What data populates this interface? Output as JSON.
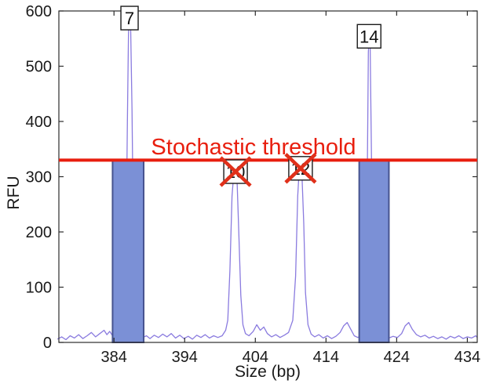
{
  "figure": {
    "background": "#ffffff",
    "axis_color": "#2b2b2b",
    "text_color": "#1a1a1a",
    "trace_color": "#8a7bdf",
    "bin_fill": "#7b90d6",
    "bin_border": "#46538f",
    "threshold_color": "#e81e0e",
    "cross_color": "#e0301a",
    "peak_box_fill": "#ffffff",
    "peak_box_border": "#1a1a1a"
  },
  "chart_data": {
    "type": "line",
    "title": "",
    "xlabel": "Size (bp)",
    "ylabel": "RFU",
    "xlim": [
      376.2,
      435.4
    ],
    "ylim": [
      0,
      600
    ],
    "x_ticks": [
      384,
      394,
      404,
      414,
      424,
      434
    ],
    "y_ticks": [
      0,
      100,
      200,
      300,
      400,
      500,
      600
    ],
    "grid": false,
    "threshold": {
      "value": 330,
      "label": "Stochastic threshold"
    },
    "peaks": [
      {
        "label": "7",
        "size_bp": 386.2,
        "height_rfu": 590,
        "above_threshold": true,
        "crossed_out": false
      },
      {
        "label": "10",
        "size_bp": 401.2,
        "height_rfu": 312,
        "above_threshold": false,
        "crossed_out": true
      },
      {
        "label": "12",
        "size_bp": 410.4,
        "height_rfu": 318,
        "above_threshold": false,
        "crossed_out": true
      },
      {
        "label": "14",
        "size_bp": 420.1,
        "height_rfu": 557,
        "above_threshold": true,
        "crossed_out": false
      }
    ],
    "allele_bins": [
      {
        "from_bp": 383.8,
        "to_bp": 388.2,
        "top_rfu": 330
      },
      {
        "from_bp": 418.7,
        "to_bp": 422.9,
        "top_rfu": 330
      }
    ],
    "trace": [
      [
        376.0,
        6
      ],
      [
        376.6,
        10
      ],
      [
        377.2,
        5
      ],
      [
        377.8,
        12
      ],
      [
        378.4,
        8
      ],
      [
        379.0,
        14
      ],
      [
        379.6,
        7
      ],
      [
        380.2,
        12
      ],
      [
        380.8,
        18
      ],
      [
        381.4,
        10
      ],
      [
        382.0,
        16
      ],
      [
        382.6,
        22
      ],
      [
        383.0,
        14
      ],
      [
        383.4,
        20
      ],
      [
        383.8,
        12
      ],
      [
        384.2,
        10
      ],
      [
        384.6,
        14
      ],
      [
        385.0,
        18
      ],
      [
        385.4,
        35
      ],
      [
        385.7,
        160
      ],
      [
        385.9,
        400
      ],
      [
        386.05,
        560
      ],
      [
        386.2,
        590
      ],
      [
        386.35,
        575
      ],
      [
        386.55,
        420
      ],
      [
        386.75,
        180
      ],
      [
        387.0,
        55
      ],
      [
        387.3,
        20
      ],
      [
        387.7,
        11
      ],
      [
        388.1,
        9
      ],
      [
        388.6,
        12
      ],
      [
        389.1,
        7
      ],
      [
        389.7,
        13
      ],
      [
        390.3,
        9
      ],
      [
        390.9,
        15
      ],
      [
        391.5,
        10
      ],
      [
        392.1,
        16
      ],
      [
        392.7,
        8
      ],
      [
        393.3,
        13
      ],
      [
        393.9,
        7
      ],
      [
        394.5,
        11
      ],
      [
        395.1,
        6
      ],
      [
        395.7,
        13
      ],
      [
        396.3,
        9
      ],
      [
        396.9,
        14
      ],
      [
        397.5,
        8
      ],
      [
        398.1,
        12
      ],
      [
        398.7,
        9
      ],
      [
        399.3,
        12
      ],
      [
        399.8,
        22
      ],
      [
        400.1,
        40
      ],
      [
        400.4,
        130
      ],
      [
        400.7,
        265
      ],
      [
        400.95,
        305
      ],
      [
        401.2,
        312
      ],
      [
        401.4,
        298
      ],
      [
        401.65,
        205
      ],
      [
        401.95,
        85
      ],
      [
        402.25,
        32
      ],
      [
        402.6,
        16
      ],
      [
        403.1,
        12
      ],
      [
        403.7,
        20
      ],
      [
        404.2,
        32
      ],
      [
        404.7,
        22
      ],
      [
        405.2,
        28
      ],
      [
        405.7,
        16
      ],
      [
        406.3,
        10
      ],
      [
        406.9,
        14
      ],
      [
        407.5,
        9
      ],
      [
        408.1,
        13
      ],
      [
        408.7,
        18
      ],
      [
        409.3,
        40
      ],
      [
        409.7,
        120
      ],
      [
        410.0,
        265
      ],
      [
        410.2,
        310
      ],
      [
        410.4,
        318
      ],
      [
        410.6,
        303
      ],
      [
        410.85,
        215
      ],
      [
        411.1,
        90
      ],
      [
        411.45,
        32
      ],
      [
        411.9,
        15
      ],
      [
        412.4,
        10
      ],
      [
        413.0,
        14
      ],
      [
        413.6,
        8
      ],
      [
        414.2,
        12
      ],
      [
        414.8,
        7
      ],
      [
        415.4,
        11
      ],
      [
        416.0,
        18
      ],
      [
        416.5,
        30
      ],
      [
        417.0,
        36
      ],
      [
        417.5,
        24
      ],
      [
        418.0,
        12
      ],
      [
        418.5,
        9
      ],
      [
        419.0,
        12
      ],
      [
        419.3,
        25
      ],
      [
        419.6,
        95
      ],
      [
        419.85,
        310
      ],
      [
        420.0,
        525
      ],
      [
        420.1,
        557
      ],
      [
        420.25,
        535
      ],
      [
        420.45,
        320
      ],
      [
        420.7,
        115
      ],
      [
        421.0,
        38
      ],
      [
        421.4,
        15
      ],
      [
        421.9,
        10
      ],
      [
        422.4,
        12
      ],
      [
        422.9,
        8
      ],
      [
        423.5,
        11
      ],
      [
        424.1,
        9
      ],
      [
        424.7,
        16
      ],
      [
        425.2,
        30
      ],
      [
        425.7,
        36
      ],
      [
        426.2,
        24
      ],
      [
        426.8,
        14
      ],
      [
        427.4,
        10
      ],
      [
        428.0,
        13
      ],
      [
        428.6,
        8
      ],
      [
        429.2,
        11
      ],
      [
        429.8,
        7
      ],
      [
        430.4,
        10
      ],
      [
        431.0,
        6
      ],
      [
        431.6,
        11
      ],
      [
        432.2,
        8
      ],
      [
        432.8,
        12
      ],
      [
        433.4,
        7
      ],
      [
        434.0,
        10
      ],
      [
        434.6,
        8
      ],
      [
        435.2,
        12
      ],
      [
        435.4,
        9
      ]
    ]
  }
}
